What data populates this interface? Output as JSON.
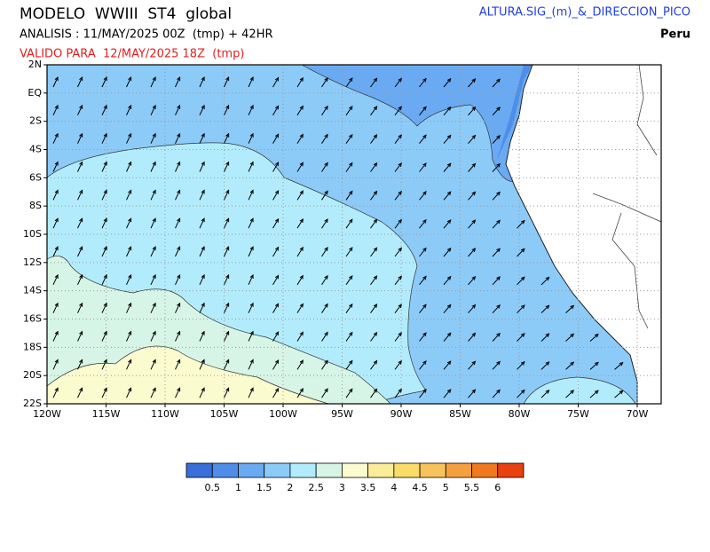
{
  "header": {
    "title": "MODELO  WWIII  ST4  global",
    "analysis": "ANALISIS : 11/MAY/2025 00Z  (tmp) + 42HR",
    "valid": "VALIDO PARA  12/MAY/2025 18Z  (tmp)",
    "variable": "ALTURA.SIG_(m)_&_DIRECCION_PICO",
    "region": "Peru"
  },
  "map": {
    "lon_labels": [
      "120W",
      "115W",
      "110W",
      "105W",
      "100W",
      "95W",
      "90W",
      "85W",
      "80W",
      "75W",
      "70W"
    ],
    "lat_labels": [
      "2N",
      "EQ",
      "2S",
      "4S",
      "6S",
      "8S",
      "10S",
      "12S",
      "14S",
      "16S",
      "18S",
      "20S",
      "22S"
    ]
  },
  "colorbar": {
    "colors": [
      "#3a6fd8",
      "#4f8ee8",
      "#6aaaf2",
      "#8ccaf8",
      "#b2ecfc",
      "#d6f5e6",
      "#fbfbd0",
      "#fbec9a",
      "#f9dc6a",
      "#f7c35a",
      "#f5a040",
      "#f07820",
      "#e84010"
    ],
    "ticks": [
      0.5,
      1,
      1.5,
      2,
      2.5,
      3,
      3.5,
      4,
      4.5,
      5,
      5.5,
      6
    ]
  }
}
